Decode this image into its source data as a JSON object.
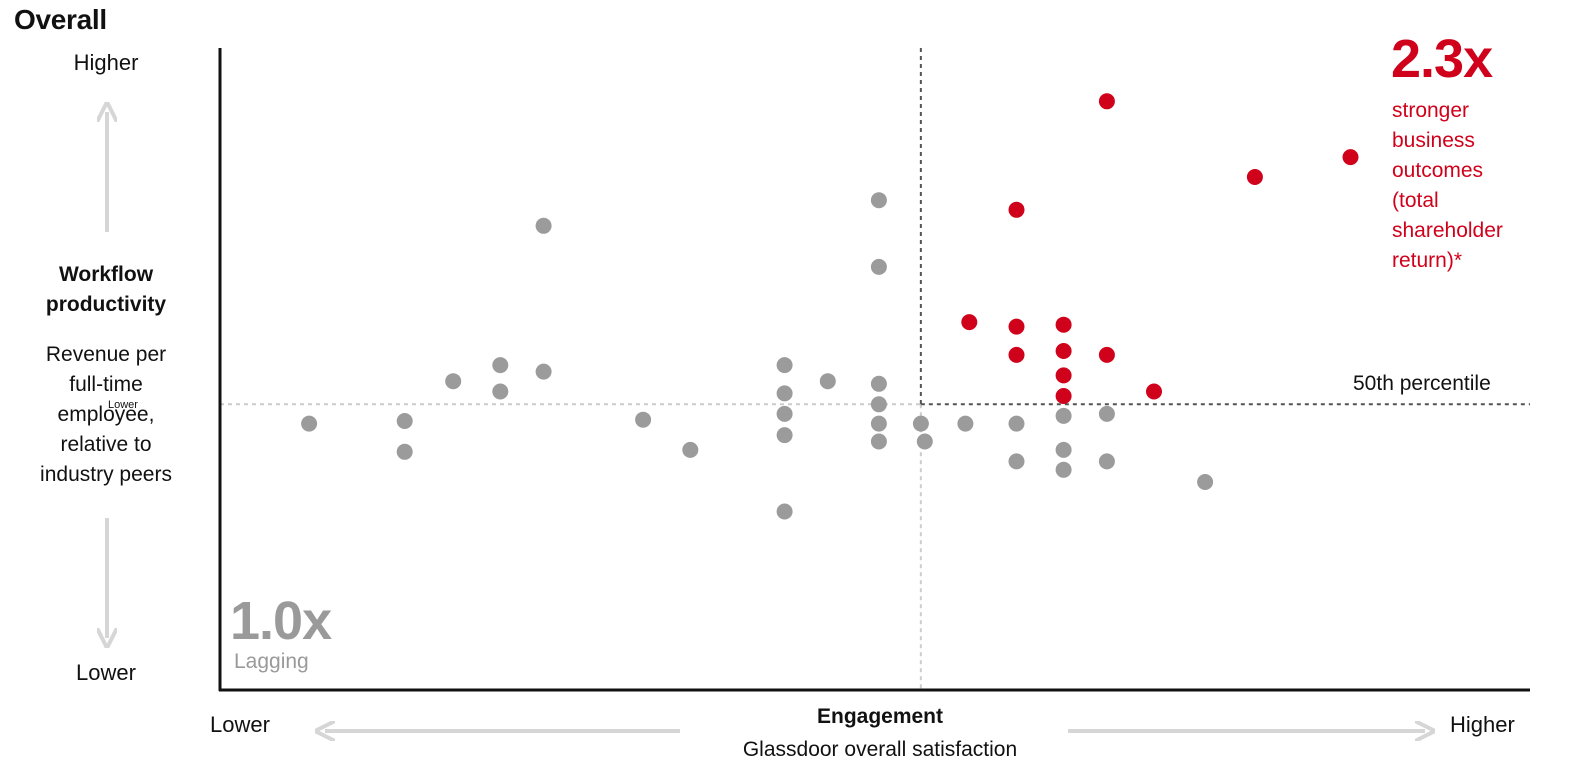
{
  "title": "Overall",
  "y_axis": {
    "higher": "Higher",
    "lower": "Lower",
    "title": "Workflow\nproductivity",
    "subtitle": "Revenue per\nfull-time\nemployee,\nrelative to\nindustry peers",
    "tiny_label": "Lower"
  },
  "x_axis": {
    "lower": "Lower",
    "higher": "Higher",
    "title": "Engagement",
    "subtitle": "Glassdoor overall satisfaction"
  },
  "leader": {
    "value": "2.3x",
    "text": "stronger\nbusiness\noutcomes\n(total\nshareholder\nreturn)*"
  },
  "lagging": {
    "value": "1.0x",
    "label": "Lagging"
  },
  "median_label": "50th percentile",
  "colors": {
    "highlight": "#d0021b",
    "point": "#9b9b9b",
    "axis": "#111111",
    "arrow": "#d6d6d6",
    "median_line": "#555555",
    "guide_line": "#cccccc",
    "lagging_text": "#9a9a9a"
  },
  "chart_data": {
    "type": "scatter",
    "xlim": [
      0,
      100
    ],
    "ylim": [
      0,
      100
    ],
    "median": {
      "x": 53.5,
      "y": 44.5
    },
    "ticks": "none",
    "grid": false,
    "series": [
      {
        "name": "",
        "color": "#9b9b9b",
        "points": [
          [
            6.8,
            41.5
          ],
          [
            14.1,
            41.9
          ],
          [
            14.1,
            37.1
          ],
          [
            17.8,
            48.1
          ],
          [
            21.4,
            50.6
          ],
          [
            21.4,
            46.5
          ],
          [
            24.7,
            72.3
          ],
          [
            24.7,
            49.6
          ],
          [
            32.3,
            42.1
          ],
          [
            35.9,
            37.4
          ],
          [
            43.1,
            50.6
          ],
          [
            43.1,
            46.2
          ],
          [
            43.1,
            43.0
          ],
          [
            43.1,
            39.7
          ],
          [
            43.1,
            27.8
          ],
          [
            46.4,
            48.1
          ],
          [
            50.3,
            76.3
          ],
          [
            50.3,
            65.9
          ],
          [
            50.3,
            47.7
          ],
          [
            50.3,
            44.5
          ],
          [
            50.3,
            41.5
          ],
          [
            50.3,
            38.7
          ],
          [
            53.5,
            41.5
          ],
          [
            53.8,
            38.7
          ],
          [
            56.9,
            41.5
          ],
          [
            60.8,
            41.5
          ],
          [
            60.8,
            35.6
          ],
          [
            64.4,
            42.7
          ],
          [
            64.4,
            37.4
          ],
          [
            64.4,
            34.3
          ],
          [
            67.7,
            43.0
          ],
          [
            67.7,
            35.6
          ],
          [
            75.2,
            32.4
          ]
        ]
      },
      {
        "name": "",
        "color": "#d0021b",
        "points": [
          [
            67.7,
            91.7
          ],
          [
            60.8,
            74.8
          ],
          [
            79.0,
            79.9
          ],
          [
            86.3,
            83.0
          ],
          [
            57.2,
            57.3
          ],
          [
            60.8,
            56.6
          ],
          [
            64.4,
            56.9
          ],
          [
            60.8,
            52.2
          ],
          [
            64.4,
            52.8
          ],
          [
            67.7,
            52.2
          ],
          [
            64.4,
            49.0
          ],
          [
            64.4,
            45.8
          ],
          [
            71.3,
            46.5
          ]
        ]
      }
    ]
  }
}
